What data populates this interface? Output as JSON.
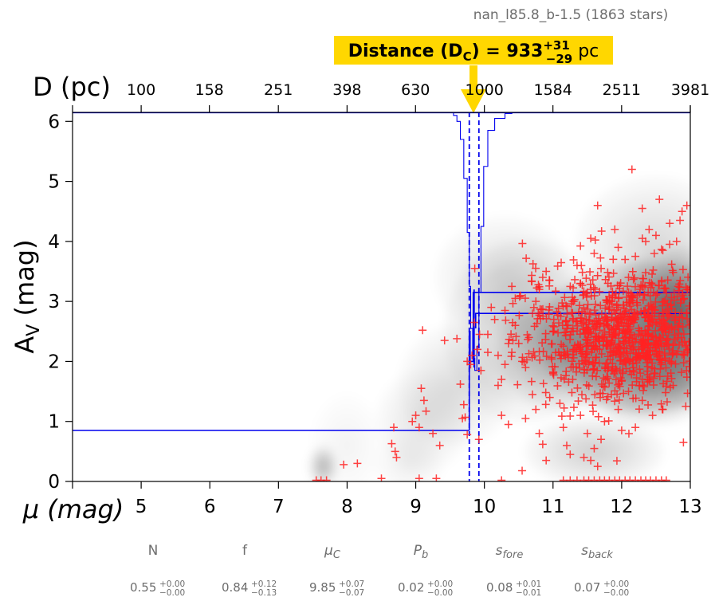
{
  "chart_data": {
    "type": "scatter",
    "title": "nan_l85.8_b-1.5 (1863 stars)",
    "annotation": {
      "prefix": "Distance (D",
      "sub": "C",
      "eq": ") = 933",
      "sup": "+31",
      "low": "−29",
      "unit": " pc"
    },
    "xlabel": "μ (mag)",
    "ylabel": "A",
    "ylabel_sub": "V",
    "ylabel_unit": " (mag)",
    "top_axis_label": "D (pc)",
    "xlim": [
      4,
      13
    ],
    "ylim": [
      0,
      6.15
    ],
    "x_ticks": [
      "5",
      "6",
      "7",
      "8",
      "9",
      "10",
      "11",
      "12",
      "13"
    ],
    "y_ticks": [
      "0",
      "1",
      "2",
      "3",
      "4",
      "5",
      "6"
    ],
    "top_ticks": [
      "100",
      "158",
      "251",
      "398",
      "630",
      "1000",
      "1584",
      "2511",
      "3981"
    ],
    "distance_mu": 9.85,
    "distance_mu_band": [
      9.78,
      9.92
    ],
    "foreground_av": 0.85,
    "background_av_lines": [
      3.15,
      2.8
    ],
    "colors": {
      "stars": "#ff2222",
      "model": "#0000ee",
      "annotation_bg": "#ffd700"
    },
    "params": [
      {
        "name": "N",
        "value": "0.55",
        "up": "+0.00",
        "down": "−0.00"
      },
      {
        "name": "f",
        "value": "0.84",
        "up": "+0.12",
        "down": "−0.13"
      },
      {
        "name": "μ",
        "sub": "C",
        "value": "9.85",
        "up": "+0.07",
        "down": "−0.07"
      },
      {
        "name": "P",
        "sub": "b",
        "value": "0.02",
        "up": "+0.00",
        "down": "−0.00"
      },
      {
        "name": "s",
        "sub": "fore",
        "value": "0.08",
        "up": "+0.01",
        "down": "−0.01"
      },
      {
        "name": "s",
        "sub": "back",
        "value": "0.07",
        "up": "+0.00",
        "down": "−0.00"
      }
    ],
    "density_clumps": [
      {
        "x": 12.3,
        "y": 2.4,
        "sx": 0.9,
        "sy": 0.75,
        "w": 1.0
      },
      {
        "x": 11.2,
        "y": 2.2,
        "sx": 0.6,
        "sy": 0.6,
        "w": 0.55
      },
      {
        "x": 12.7,
        "y": 3.0,
        "sx": 0.5,
        "sy": 0.5,
        "w": 0.6
      },
      {
        "x": 12.4,
        "y": 1.7,
        "sx": 0.6,
        "sy": 0.45,
        "w": 0.6
      },
      {
        "x": 10.6,
        "y": 2.5,
        "sx": 0.7,
        "sy": 0.9,
        "w": 0.35
      },
      {
        "x": 12.5,
        "y": 3.9,
        "sx": 0.7,
        "sy": 0.7,
        "w": 0.3
      },
      {
        "x": 11.6,
        "y": 0.5,
        "sx": 0.6,
        "sy": 0.35,
        "w": 0.35
      },
      {
        "x": 10.3,
        "y": 3.4,
        "sx": 0.6,
        "sy": 0.6,
        "w": 0.25
      },
      {
        "x": 9.6,
        "y": 1.6,
        "sx": 0.5,
        "sy": 0.6,
        "w": 0.25
      },
      {
        "x": 9.1,
        "y": 1.0,
        "sx": 0.4,
        "sy": 0.5,
        "w": 0.2
      },
      {
        "x": 7.65,
        "y": 0.25,
        "sx": 0.12,
        "sy": 0.2,
        "w": 0.55
      },
      {
        "x": 8.0,
        "y": 0.6,
        "sx": 0.3,
        "sy": 0.5,
        "w": 0.1
      },
      {
        "x": 8.9,
        "y": 0.3,
        "sx": 0.3,
        "sy": 0.3,
        "w": 0.15
      },
      {
        "x": 12.9,
        "y": 2.6,
        "sx": 0.3,
        "sy": 0.8,
        "w": 0.5
      }
    ],
    "stars": [
      [
        7.55,
        0.02
      ],
      [
        7.62,
        0.02
      ],
      [
        7.7,
        0.02
      ],
      [
        7.95,
        0.28
      ],
      [
        8.15,
        0.3
      ],
      [
        8.5,
        0.05
      ],
      [
        8.65,
        0.63
      ],
      [
        8.7,
        0.5
      ],
      [
        8.72,
        0.4
      ],
      [
        8.68,
        0.9
      ],
      [
        8.95,
        1.0
      ],
      [
        9.0,
        1.1
      ],
      [
        9.05,
        0.9
      ],
      [
        9.08,
        1.55
      ],
      [
        9.12,
        1.35
      ],
      [
        9.15,
        1.17
      ],
      [
        9.25,
        0.8
      ],
      [
        9.35,
        0.6
      ],
      [
        9.42,
        2.35
      ],
      [
        9.1,
        2.52
      ],
      [
        9.6,
        2.38
      ],
      [
        9.65,
        1.62
      ],
      [
        9.7,
        1.28
      ],
      [
        9.72,
        1.07
      ],
      [
        9.75,
        0.78
      ],
      [
        9.8,
        1.95
      ],
      [
        9.82,
        2.1
      ],
      [
        9.86,
        3.55
      ],
      [
        9.9,
        2.2
      ],
      [
        9.93,
        2.45
      ],
      [
        9.95,
        1.85
      ],
      [
        9.75,
        2.0
      ],
      [
        9.85,
        2.65
      ],
      [
        9.68,
        1.05
      ],
      [
        9.92,
        0.7
      ],
      [
        9.05,
        0.05
      ],
      [
        9.3,
        0.05
      ],
      [
        10.05,
        2.45
      ],
      [
        10.1,
        2.9
      ],
      [
        10.2,
        2.1
      ],
      [
        10.25,
        1.7
      ],
      [
        10.3,
        1.95
      ],
      [
        10.35,
        2.3
      ],
      [
        10.4,
        2.15
      ],
      [
        10.45,
        2.6
      ],
      [
        10.5,
        2.3
      ],
      [
        10.55,
        2.0
      ],
      [
        10.6,
        1.9
      ],
      [
        10.65,
        2.4
      ],
      [
        10.7,
        2.8
      ],
      [
        10.75,
        3.0
      ],
      [
        10.8,
        3.2
      ],
      [
        10.85,
        3.4
      ],
      [
        10.9,
        3.5
      ],
      [
        10.95,
        3.35
      ],
      [
        10.3,
        2.85
      ],
      [
        10.2,
        1.6
      ],
      [
        10.25,
        1.1
      ],
      [
        10.35,
        0.95
      ],
      [
        10.6,
        1.05
      ],
      [
        10.8,
        0.8
      ],
      [
        10.85,
        0.62
      ],
      [
        10.9,
        0.35
      ],
      [
        10.55,
        0.18
      ],
      [
        10.7,
        1.45
      ],
      [
        10.75,
        1.2
      ],
      [
        11.0,
        1.8
      ],
      [
        11.1,
        1.3
      ],
      [
        11.15,
        0.9
      ],
      [
        11.2,
        0.6
      ],
      [
        11.25,
        0.45
      ],
      [
        11.3,
        3.0
      ],
      [
        11.35,
        3.6
      ],
      [
        11.4,
        3.3
      ],
      [
        11.5,
        3.15
      ],
      [
        11.55,
        4.05
      ],
      [
        11.6,
        3.8
      ],
      [
        11.65,
        4.6
      ],
      [
        11.7,
        3.55
      ],
      [
        11.8,
        3.3
      ],
      [
        11.9,
        4.2
      ],
      [
        11.95,
        3.9
      ],
      [
        12.05,
        3.7
      ],
      [
        12.1,
        3.4
      ],
      [
        12.15,
        5.2
      ],
      [
        12.2,
        3.75
      ],
      [
        12.3,
        4.55
      ],
      [
        12.35,
        4.0
      ],
      [
        12.4,
        4.2
      ],
      [
        12.5,
        4.1
      ],
      [
        12.55,
        4.7
      ],
      [
        12.6,
        3.85
      ],
      [
        12.7,
        4.3
      ],
      [
        12.8,
        4.0
      ],
      [
        12.85,
        4.35
      ],
      [
        12.88,
        4.5
      ],
      [
        12.95,
        4.6
      ],
      [
        12.9,
        0.65
      ],
      [
        12.75,
        1.6
      ],
      [
        12.6,
        1.2
      ],
      [
        12.45,
        1.1
      ],
      [
        12.3,
        1.35
      ],
      [
        12.1,
        1.5
      ],
      [
        11.95,
        1.2
      ],
      [
        11.85,
        1.45
      ],
      [
        11.75,
        1.0
      ],
      [
        11.7,
        0.7
      ],
      [
        11.6,
        0.55
      ],
      [
        11.55,
        0.35
      ],
      [
        11.65,
        0.25
      ],
      [
        11.5,
        0.8
      ],
      [
        11.4,
        1.1
      ],
      [
        11.45,
        0.4
      ],
      [
        12.0,
        0.85
      ],
      [
        12.2,
        0.9
      ],
      [
        11.35,
        0.02
      ],
      [
        11.45,
        0.02
      ],
      [
        11.52,
        0.02
      ],
      [
        11.6,
        0.02
      ],
      [
        11.68,
        0.02
      ],
      [
        11.75,
        0.02
      ],
      [
        11.82,
        0.02
      ],
      [
        11.9,
        0.02
      ],
      [
        11.97,
        0.02
      ],
      [
        12.05,
        0.02
      ],
      [
        12.12,
        0.02
      ],
      [
        12.2,
        0.02
      ],
      [
        12.28,
        0.02
      ],
      [
        12.35,
        0.02
      ],
      [
        12.42,
        0.02
      ],
      [
        12.5,
        0.02
      ],
      [
        12.58,
        0.02
      ],
      [
        12.65,
        0.02
      ],
      [
        11.25,
        0.02
      ],
      [
        11.15,
        0.02
      ],
      [
        10.25,
        0.02
      ],
      [
        10.4,
        3.25
      ],
      [
        10.45,
        3.05
      ],
      [
        10.15,
        2.7
      ],
      [
        10.05,
        2.15
      ]
    ],
    "star_cloud": {
      "count": 1080,
      "x_range": [
        10.3,
        13.0
      ],
      "center": [
        12.1,
        2.45
      ],
      "spread": [
        0.75,
        0.52
      ]
    }
  }
}
